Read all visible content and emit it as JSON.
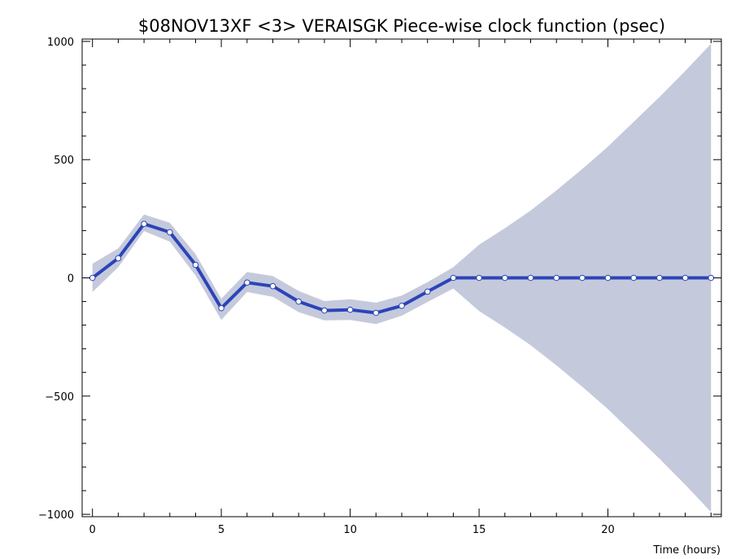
{
  "chart_data": {
    "type": "line",
    "title": "$08NOV13XF <3>  VERAISGK  Piece-wise clock function (psec)",
    "xlabel": "Time (hours)",
    "ylabel": "",
    "xlim": [
      -0.4,
      24.4
    ],
    "ylim": [
      -1010,
      1010
    ],
    "xticks": [
      "0",
      "5",
      "10",
      "15",
      "20"
    ],
    "yticks": [
      "1000",
      "500",
      "0",
      "−500",
      "−1000"
    ],
    "grid": false,
    "legend": "none",
    "colors": {
      "line": "#2b44b8",
      "band": "#c5c9dc",
      "marker_fill": "#ffffff",
      "marker_edge": "#2b44b8"
    },
    "series": [
      {
        "x": [
          0,
          1,
          2,
          3,
          4,
          5,
          6,
          7,
          8,
          9,
          10,
          11,
          12,
          13,
          14,
          15,
          16,
          17,
          18,
          19,
          20,
          21,
          22,
          23,
          24
        ],
        "values": [
          0,
          83,
          228,
          193,
          55,
          -128,
          -20,
          -35,
          -100,
          -138,
          -135,
          -148,
          -118,
          -58,
          0,
          0,
          0,
          0,
          0,
          0,
          0,
          0,
          0,
          0,
          0
        ],
        "upper": [
          60,
          125,
          268,
          233,
          100,
          -88,
          25,
          8,
          -55,
          -98,
          -90,
          -105,
          -75,
          -18,
          45,
          140,
          210,
          285,
          370,
          460,
          555,
          660,
          765,
          875,
          990
        ],
        "lower": [
          -60,
          45,
          198,
          153,
          10,
          -178,
          -60,
          -80,
          -145,
          -180,
          -178,
          -195,
          -160,
          -102,
          -45,
          -140,
          -210,
          -285,
          -370,
          -460,
          -555,
          -660,
          -765,
          -875,
          -990
        ]
      }
    ]
  }
}
